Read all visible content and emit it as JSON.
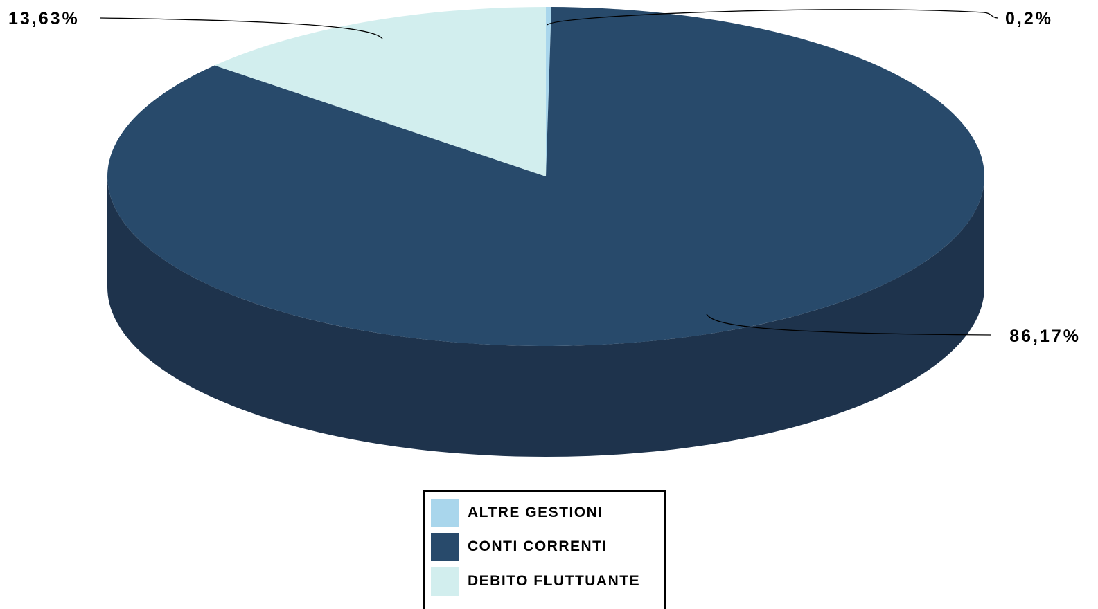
{
  "chart_data": {
    "type": "pie",
    "style": "3d",
    "categories": [
      "ALTRE GESTIONI",
      "CONTI CORRENTI",
      "DEBITO FLUTTUANTE"
    ],
    "values": [
      0.2,
      86.17,
      13.63
    ],
    "data_labels": [
      "0,2%",
      "86,17%",
      "13,63%"
    ],
    "colors": [
      "#a9d6ec",
      "#284a6b",
      "#d2eeee"
    ],
    "side_colors": [
      "#7fb3cf",
      "#1e334c",
      "#a9c9c9"
    ],
    "start_angle_deg": 90,
    "direction": "clockwise",
    "legend_position": "bottom"
  }
}
